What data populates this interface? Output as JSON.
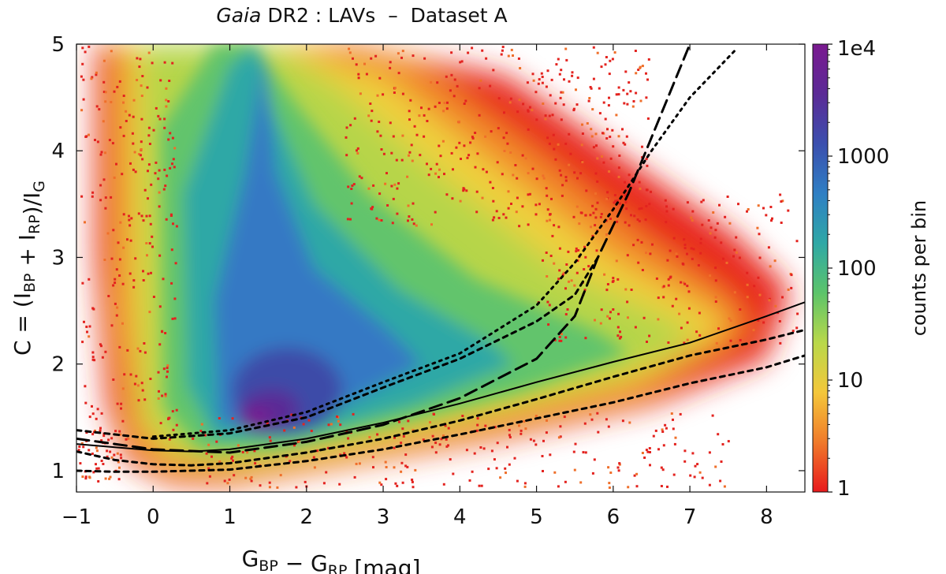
{
  "chart_data": {
    "type": "heatmap",
    "title": {
      "italic": "Gaia",
      "rest": " DR2 : LAVs  –  Dataset A"
    },
    "xlabel": "G_BP − G_RP  [mag]",
    "ylabel": "C = (I_BP + I_RP)/I_G",
    "xlim": [
      -1,
      8.5
    ],
    "ylim": [
      0.8,
      5
    ],
    "xticks": [
      {
        "value": -1,
        "label": "−1"
      },
      {
        "value": 0,
        "label": "0"
      },
      {
        "value": 1,
        "label": "1"
      },
      {
        "value": 2,
        "label": "2"
      },
      {
        "value": 3,
        "label": "3"
      },
      {
        "value": 4,
        "label": "4"
      },
      {
        "value": 5,
        "label": "5"
      },
      {
        "value": 6,
        "label": "6"
      },
      {
        "value": 7,
        "label": "7"
      },
      {
        "value": 8,
        "label": "8"
      }
    ],
    "yticks": [
      {
        "value": 1,
        "label": "1"
      },
      {
        "value": 2,
        "label": "2"
      },
      {
        "value": 3,
        "label": "3"
      },
      {
        "value": 4,
        "label": "4"
      },
      {
        "value": 5,
        "label": "5"
      }
    ],
    "colorbar": {
      "label": "counts per bin",
      "scale": "log",
      "range": [
        1,
        10000
      ],
      "ticks": [
        {
          "value": 1,
          "label": "1"
        },
        {
          "value": 10,
          "label": "10"
        },
        {
          "value": 100,
          "label": "100"
        },
        {
          "value": 1000,
          "label": "1000"
        },
        {
          "value": 10000,
          "label": "1e4"
        }
      ],
      "colors": [
        "#e8191c",
        "#f07a2a",
        "#f4c73a",
        "#b9d84a",
        "#5cc46a",
        "#2fa8a6",
        "#2f7fc4",
        "#3b4fae",
        "#5b2a96",
        "#7a1a90"
      ]
    },
    "density_features": {
      "peak": {
        "x": 1.4,
        "y": 1.5
      },
      "vertical_plume_x": 1.4,
      "upper_branch_peak_at_x": 2.5
    },
    "curves": [
      {
        "style": "solid",
        "x": [
          -1,
          -0.5,
          0,
          0.5,
          1,
          2,
          3,
          4,
          5,
          6,
          7,
          8,
          8.5
        ],
        "y": [
          1.25,
          1.22,
          1.19,
          1.18,
          1.2,
          1.3,
          1.45,
          1.63,
          1.83,
          2.02,
          2.2,
          2.45,
          2.58
        ]
      },
      {
        "style": "dashed",
        "x": [
          -1,
          -0.5,
          0,
          0.5,
          1,
          2,
          3,
          4,
          5,
          6,
          7,
          8,
          8.5
        ],
        "y": [
          1.18,
          1.1,
          1.06,
          1.05,
          1.07,
          1.17,
          1.3,
          1.47,
          1.67,
          1.88,
          2.08,
          2.23,
          2.32
        ]
      },
      {
        "style": "dashed",
        "x": [
          -1,
          -0.5,
          0,
          1,
          2,
          3,
          4,
          5,
          6,
          7,
          8,
          8.5
        ],
        "y": [
          1.0,
          0.99,
          0.99,
          1.01,
          1.09,
          1.2,
          1.34,
          1.49,
          1.64,
          1.82,
          1.97,
          2.08
        ]
      },
      {
        "style": "dashed",
        "x": [
          -1,
          0,
          1,
          2,
          3,
          4,
          5,
          5.5,
          5.8
        ],
        "y": [
          1.38,
          1.3,
          1.35,
          1.5,
          1.78,
          2.05,
          2.4,
          2.65,
          3.0
        ]
      },
      {
        "style": "long-dashed",
        "x": [
          -1,
          0,
          1,
          2,
          3,
          4,
          5,
          5.5,
          5.8,
          6.2,
          6.6,
          7.0
        ],
        "y": [
          1.3,
          1.2,
          1.17,
          1.27,
          1.43,
          1.68,
          2.05,
          2.45,
          3.0,
          3.6,
          4.3,
          5.0
        ]
      },
      {
        "style": "dotted",
        "x": [
          0,
          1,
          2,
          3,
          4,
          5,
          5.5,
          6,
          6.5,
          7,
          7.6
        ],
        "y": [
          1.32,
          1.38,
          1.55,
          1.83,
          2.1,
          2.55,
          2.95,
          3.45,
          4.0,
          4.5,
          4.95
        ]
      }
    ]
  }
}
